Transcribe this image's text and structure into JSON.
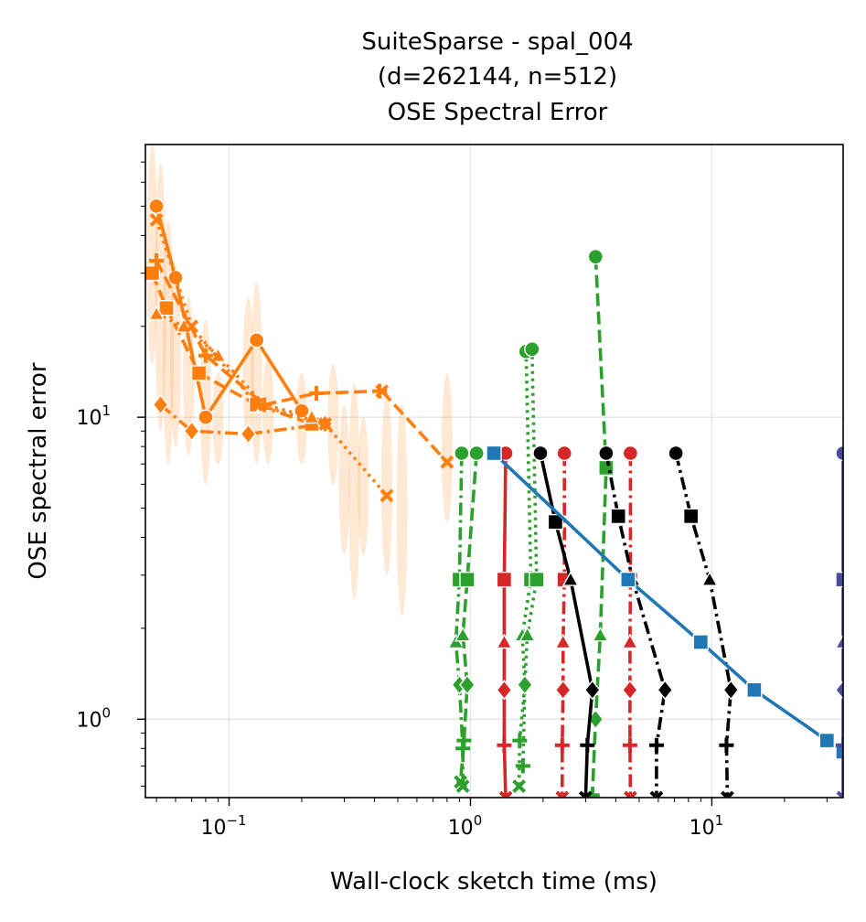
{
  "chart_data": {
    "type": "line",
    "title_lines": [
      "SuiteSparse - spal_004",
      "(d=262144, n=512)",
      "OSE Spectral Error"
    ],
    "xlabel": "Wall-clock sketch time (ms)",
    "ylabel": "OSE spectral error",
    "x_scale": "log",
    "y_scale": "log",
    "xlim": [
      0.045,
      35
    ],
    "ylim": [
      0.55,
      80
    ],
    "x_ticks": [
      {
        "value": 0.1,
        "label": "10^-1"
      },
      {
        "value": 1,
        "label": "10^0"
      },
      {
        "value": 10,
        "label": "10^1"
      }
    ],
    "y_ticks": [
      {
        "value": 1,
        "label": "10^0"
      },
      {
        "value": 10,
        "label": "10^1"
      }
    ],
    "grid": true,
    "legend": "none",
    "colors": {
      "orange": "#ff7f0e",
      "green": "#2ca02c",
      "red": "#d62728",
      "black": "#000000",
      "blue": "#1f77b4",
      "indigo": "#4a4a9e"
    },
    "series": [
      {
        "color": "#ff7f0e",
        "dash": "solid",
        "marker": "circle",
        "x": [
          0.05,
          0.06,
          0.08,
          0.13,
          0.2
        ],
        "y": [
          50,
          29,
          10,
          18,
          10.5
        ]
      },
      {
        "color": "#ff7f0e",
        "dash": "dashed",
        "marker": "square",
        "x": [
          0.048,
          0.055,
          0.075,
          0.13,
          0.22
        ],
        "y": [
          30,
          23,
          14,
          11,
          9.5
        ]
      },
      {
        "color": "#ff7f0e",
        "dash": "dotted",
        "marker": "triangle",
        "x": [
          0.05,
          0.065,
          0.09,
          0.14,
          0.22
        ],
        "y": [
          22,
          20,
          16,
          11,
          10
        ]
      },
      {
        "color": "#ff7f0e",
        "dash": "dashdot",
        "marker": "diamond",
        "x": [
          0.052,
          0.07,
          0.12,
          0.25
        ],
        "y": [
          11,
          9,
          8.8,
          9.5
        ]
      },
      {
        "color": "#ff7f0e",
        "dash": "dashed",
        "marker": "plus",
        "x": [
          0.05,
          0.08,
          0.14,
          0.23,
          0.42
        ],
        "y": [
          33,
          16,
          11,
          12,
          12.2
        ]
      },
      {
        "color": "#ff7f0e",
        "dash": "dotted",
        "marker": "x",
        "x": [
          0.05,
          0.07,
          0.13,
          0.25,
          0.45
        ],
        "y": [
          45,
          20,
          11,
          9.5,
          5.5
        ]
      },
      {
        "color": "#ff7f0e",
        "dash": "dashed",
        "marker": "x",
        "x": [
          0.43,
          0.8
        ],
        "y": [
          12.2,
          7.1
        ]
      },
      {
        "color": "#2ca02c",
        "dash": "dashdot",
        "marker": "circle",
        "x": [
          0.92,
          0.9,
          0.87,
          0.9,
          0.93,
          0.93
        ],
        "y": [
          7.6,
          2.9,
          1.8,
          1.3,
          0.8,
          0.6
        ]
      },
      {
        "color": "#2ca02c",
        "dash": "dashed",
        "marker": "circle",
        "x": [
          1.06,
          0.97,
          0.93,
          0.97,
          0.94,
          0.91
        ],
        "y": [
          7.6,
          2.9,
          1.9,
          1.3,
          0.85,
          0.62
        ]
      },
      {
        "color": "#2ca02c",
        "dash": "dotted",
        "marker": "circle",
        "x": [
          1.7,
          1.78,
          1.64,
          1.68,
          1.6,
          1.59
        ],
        "y": [
          16.5,
          2.9,
          1.9,
          1.3,
          0.85,
          0.6
        ]
      },
      {
        "color": "#2ca02c",
        "dash": "dotted",
        "marker": "circle",
        "x": [
          1.8,
          1.88,
          1.72,
          1.68,
          1.65
        ],
        "y": [
          16.8,
          2.9,
          1.9,
          1.3,
          0.7
        ]
      },
      {
        "color": "#2ca02c",
        "dash": "dashed",
        "marker": "circle",
        "x": [
          3.3,
          3.65,
          3.45,
          3.3,
          3.2
        ],
        "y": [
          34,
          6.8,
          1.9,
          1.0,
          0.56
        ]
      },
      {
        "color": "#d62728",
        "dash": "solid",
        "marker": "circle",
        "x": [
          1.4,
          1.38,
          1.38,
          1.38,
          1.38,
          1.4
        ],
        "y": [
          7.6,
          2.9,
          1.8,
          1.25,
          0.82,
          0.55
        ]
      },
      {
        "color": "#d62728",
        "dash": "dashdot",
        "marker": "circle",
        "x": [
          2.45,
          2.45,
          2.42,
          2.42,
          2.4,
          2.4
        ],
        "y": [
          7.6,
          2.9,
          1.8,
          1.25,
          0.82,
          0.55
        ]
      },
      {
        "color": "#d62728",
        "dash": "dashdot",
        "marker": "circle",
        "x": [
          4.6,
          4.6,
          4.58,
          4.58,
          4.58,
          4.6
        ],
        "y": [
          7.6,
          2.9,
          1.8,
          1.25,
          0.82,
          0.55
        ]
      },
      {
        "color": "#000000",
        "dash": "solid",
        "marker": "circle",
        "x": [
          1.95,
          2.25,
          2.6,
          3.2,
          3.05,
          3.0
        ],
        "y": [
          7.6,
          4.5,
          2.9,
          1.25,
          0.82,
          0.55
        ]
      },
      {
        "color": "#000000",
        "dash": "dashdot",
        "marker": "circle",
        "x": [
          3.65,
          4.1,
          4.7,
          6.4,
          5.9,
          5.9
        ],
        "y": [
          7.6,
          4.7,
          2.9,
          1.25,
          0.82,
          0.55
        ]
      },
      {
        "color": "#000000",
        "dash": "dashdot",
        "marker": "circle",
        "x": [
          7.1,
          8.2,
          9.8,
          12.0,
          11.5,
          11.6
        ],
        "y": [
          7.6,
          4.7,
          2.9,
          1.25,
          0.82,
          0.55
        ]
      },
      {
        "color": "#1f77b4",
        "dash": "solid",
        "marker": "square",
        "x": [
          1.25,
          4.5,
          9.0,
          15.0,
          30.0,
          35.0
        ],
        "y": [
          7.6,
          2.9,
          1.8,
          1.25,
          0.85,
          0.78
        ]
      },
      {
        "color": "#4a4a9e",
        "dash": "solid",
        "marker": "circle",
        "x": [
          35,
          35,
          35,
          35,
          35,
          35
        ],
        "y": [
          7.6,
          2.9,
          1.8,
          1.25,
          0.82,
          0.55
        ]
      }
    ]
  }
}
